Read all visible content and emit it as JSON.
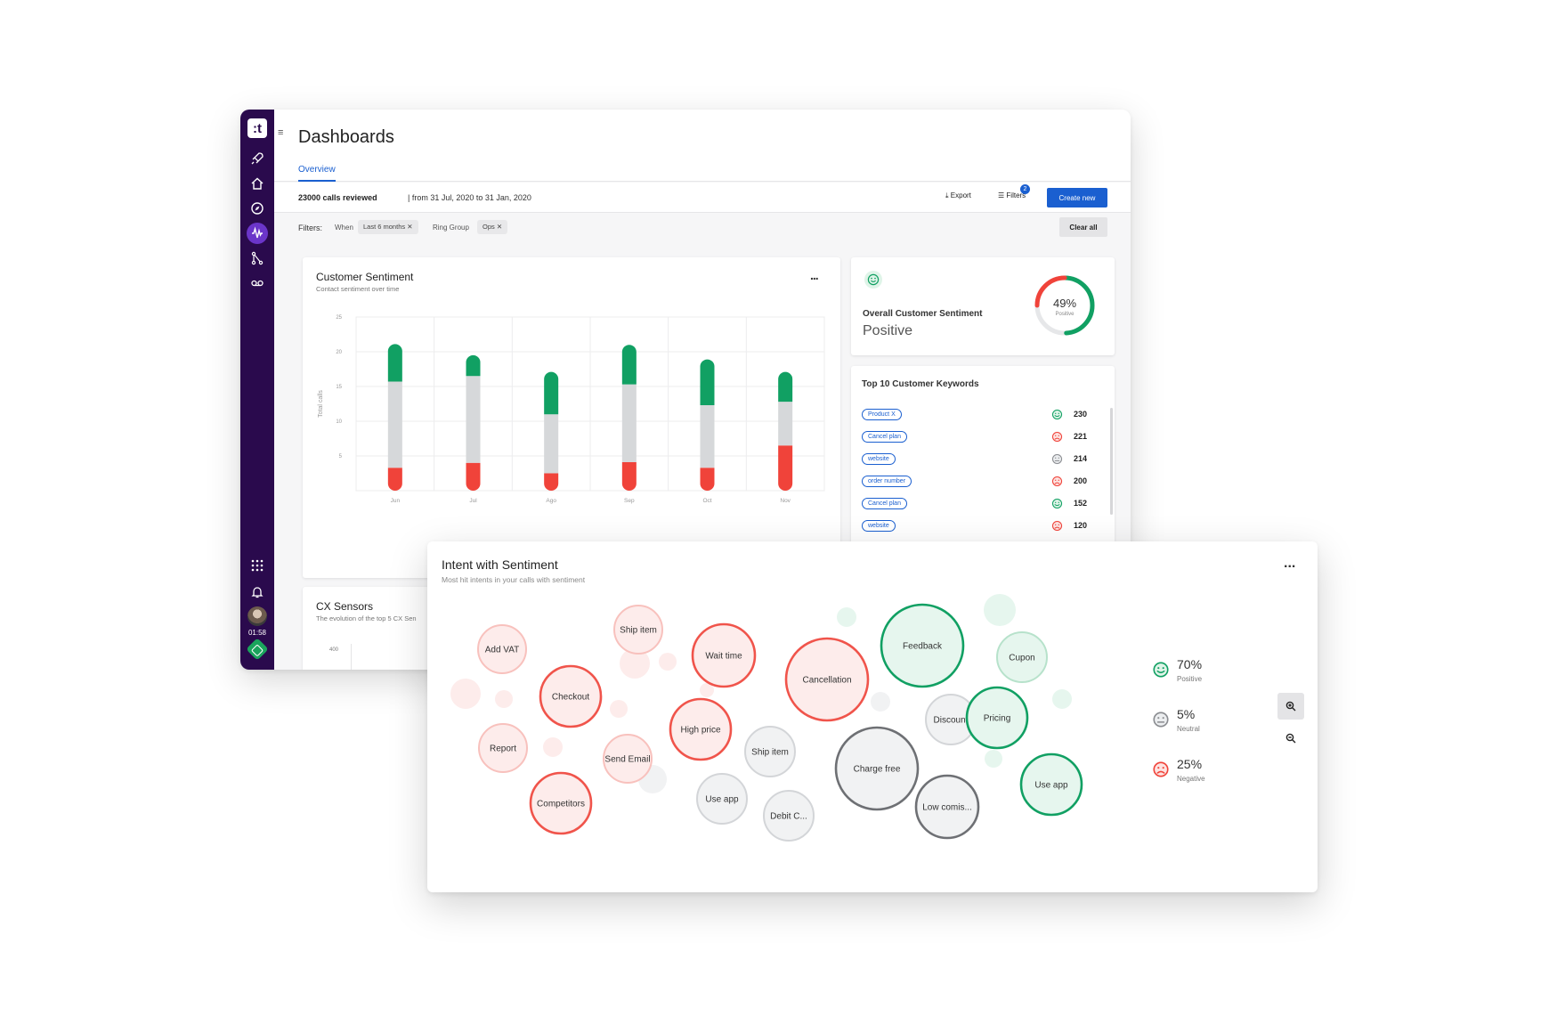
{
  "app": {
    "logo_text": ":t",
    "page_title": "Dashboards",
    "tabs": [
      {
        "label": "Overview"
      }
    ],
    "rail_time": "01:58",
    "nav_icons": [
      "rocket-icon",
      "home-icon",
      "compass-icon",
      "waveform-icon",
      "flow-icon",
      "voicemail-icon",
      "apps-grid-icon",
      "bell-icon"
    ]
  },
  "summary": {
    "calls_reviewed": "23000 calls reviewed",
    "date_range": "| from 31 Jul, 2020 to 31 Jan, 2020",
    "export_label": "Export",
    "filters_label": "Filters",
    "filters_count": "2",
    "create_label": "Create new"
  },
  "filters": {
    "label": "Filters:",
    "when_label": "When",
    "when_value": "Last 6 months",
    "ring_group_label": "Ring Group",
    "ring_group_value": "Ops",
    "clear_all_label": "Clear all"
  },
  "colors": {
    "positive": "#11a063",
    "neutral": "#d6d8da",
    "negative": "#f0433a",
    "accent": "#1a5fd0",
    "rail": "#2a0a4d"
  },
  "customer_sentiment": {
    "title": "Customer Sentiment",
    "subtitle": "Contact sentiment over time",
    "more": "...",
    "chart_data": {
      "type": "bar",
      "stacked": true,
      "categories": [
        "Jun",
        "Jul",
        "Ago",
        "Sep",
        "Oct",
        "Nov"
      ],
      "ylabel": "Total calls",
      "ylim": [
        0,
        25
      ],
      "yticks": [
        5,
        10,
        15,
        20,
        25
      ],
      "grid": true,
      "series": [
        {
          "color": "negative",
          "values": [
            3.3,
            4,
            2.5,
            4.1,
            3.3,
            6.5
          ]
        },
        {
          "color": "neutral",
          "values": [
            12.4,
            12.5,
            8.5,
            11.2,
            9,
            6.3
          ]
        },
        {
          "color": "positive",
          "values": [
            5.4,
            3,
            6.1,
            5.7,
            6.6,
            4.3
          ]
        }
      ]
    }
  },
  "overall_sentiment": {
    "title": "Overall Customer Sentiment",
    "value": "Positive",
    "percent": "49%",
    "percent_label": "Positive",
    "positive_fraction": 0.49,
    "negative_fraction": 0.25
  },
  "keywords": {
    "title": "Top 10 Customer Keywords",
    "items": [
      {
        "label": "Product X",
        "sentiment": "positive",
        "count": "230"
      },
      {
        "label": "Cancel plan",
        "sentiment": "negative",
        "count": "221"
      },
      {
        "label": "website",
        "sentiment": "neutral",
        "count": "214"
      },
      {
        "label": "order number",
        "sentiment": "negative",
        "count": "200"
      },
      {
        "label": "Cancel plan",
        "sentiment": "positive",
        "count": "152"
      },
      {
        "label": "website",
        "sentiment": "negative",
        "count": "120"
      }
    ]
  },
  "cx_sensors": {
    "title": "CX Sensors",
    "subtitle": "The evolution of the top 5 CX Sen",
    "first_tick": "400"
  },
  "intent": {
    "title": "Intent with Sentiment",
    "subtitle": "Most hit intents in your calls with sentiment",
    "more": "...",
    "bubbles": [
      {
        "label": "Add VAT",
        "sentiment": "negative",
        "strength": "light"
      },
      {
        "label": "Ship item",
        "sentiment": "negative",
        "strength": "light"
      },
      {
        "label": "Wait time",
        "sentiment": "negative",
        "strength": "strong"
      },
      {
        "label": "Cancellation",
        "sentiment": "negative",
        "strength": "strong"
      },
      {
        "label": "Feedback",
        "sentiment": "positive",
        "strength": "strong"
      },
      {
        "label": "Cupon",
        "sentiment": "positive",
        "strength": "light"
      },
      {
        "label": "Checkout",
        "sentiment": "negative",
        "strength": "strong"
      },
      {
        "label": "High price",
        "sentiment": "negative",
        "strength": "strong"
      },
      {
        "label": "Discount",
        "sentiment": "neutral",
        "strength": "light"
      },
      {
        "label": "Pricing",
        "sentiment": "positive",
        "strength": "strong"
      },
      {
        "label": "Report",
        "sentiment": "negative",
        "strength": "light"
      },
      {
        "label": "Send Email",
        "sentiment": "negative",
        "strength": "light"
      },
      {
        "label": "Ship item",
        "sentiment": "neutral",
        "strength": "light"
      },
      {
        "label": "Charge free",
        "sentiment": "neutral",
        "strength": "strong"
      },
      {
        "label": "Competitors",
        "sentiment": "negative",
        "strength": "strong"
      },
      {
        "label": "Use app",
        "sentiment": "neutral",
        "strength": "light"
      },
      {
        "label": "Debit C...",
        "sentiment": "neutral",
        "strength": "light"
      },
      {
        "label": "Low comis...",
        "sentiment": "neutral",
        "strength": "strong"
      },
      {
        "label": "Use app",
        "sentiment": "positive",
        "strength": "strong"
      }
    ],
    "legend": [
      {
        "pct": "70%",
        "name": "Positive",
        "sentiment": "positive"
      },
      {
        "pct": "5%",
        "name": "Neutral",
        "sentiment": "neutral"
      },
      {
        "pct": "25%",
        "name": "Negative",
        "sentiment": "negative"
      }
    ]
  }
}
